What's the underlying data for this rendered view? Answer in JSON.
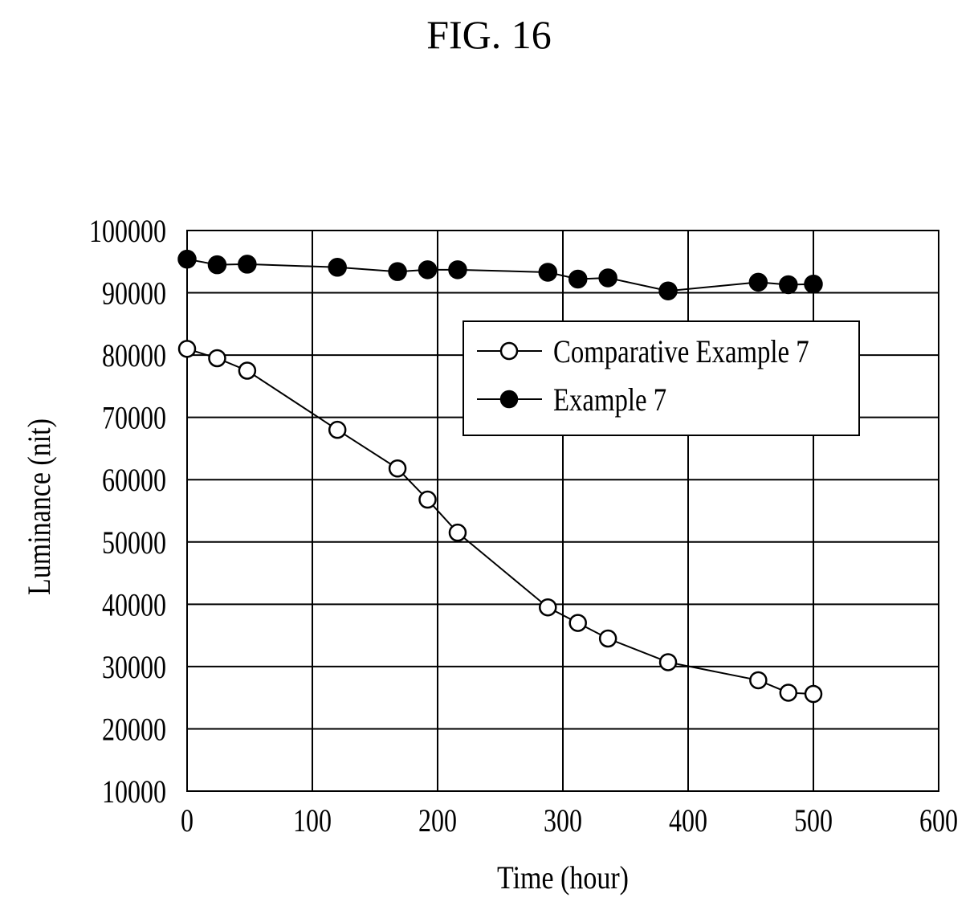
{
  "figure": {
    "title": "FIG. 16"
  },
  "chart_data": {
    "type": "line",
    "title": "",
    "xlabel": "Time (hour)",
    "ylabel": "Luminance (nit)",
    "xlim": [
      0,
      600
    ],
    "ylim": [
      10000,
      100000
    ],
    "xticks": [
      0,
      100,
      200,
      300,
      400,
      500,
      600
    ],
    "yticks": [
      10000,
      20000,
      30000,
      40000,
      50000,
      60000,
      70000,
      80000,
      90000,
      100000
    ],
    "grid": true,
    "legend_position": "upper-right",
    "series": [
      {
        "name": "Comparative Example 7",
        "marker": "open-circle",
        "x": [
          0,
          24,
          48,
          120,
          168,
          192,
          216,
          288,
          312,
          336,
          384,
          456,
          480,
          500
        ],
        "y": [
          81000,
          79500,
          77500,
          68000,
          61800,
          56800,
          51500,
          39500,
          37000,
          34500,
          30700,
          27800,
          25800,
          25600
        ]
      },
      {
        "name": "Example 7",
        "marker": "filled-circle",
        "x": [
          0,
          24,
          48,
          120,
          168,
          192,
          216,
          288,
          312,
          336,
          384,
          456,
          480,
          500
        ],
        "y": [
          95400,
          94500,
          94600,
          94100,
          93400,
          93700,
          93700,
          93300,
          92200,
          92400,
          90300,
          91700,
          91300,
          91400
        ]
      }
    ]
  }
}
